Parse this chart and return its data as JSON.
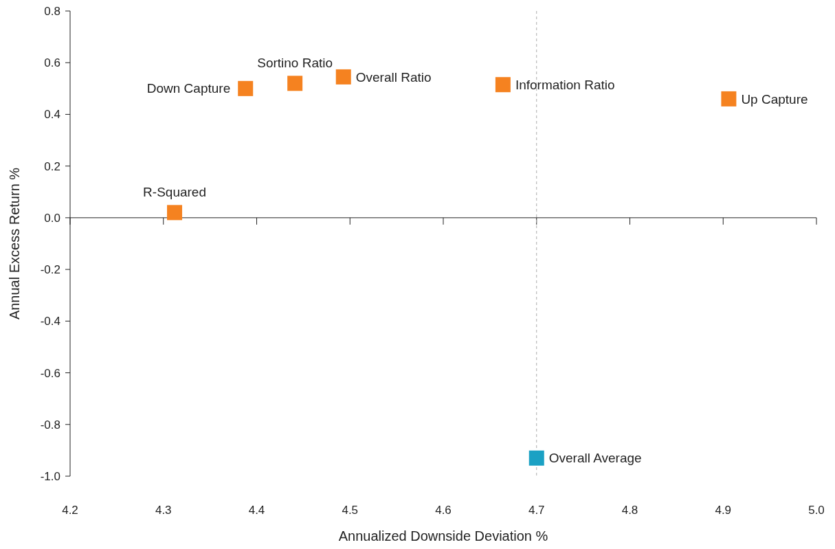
{
  "chart_data": {
    "type": "scatter",
    "xlabel": "Annualized Downside Deviation %",
    "ylabel": "Annual Excess Return %",
    "xlim": [
      4.2,
      5.0
    ],
    "ylim": [
      -1.0,
      0.8
    ],
    "xticks": [
      {
        "value": 4.2,
        "label": "4.2"
      },
      {
        "value": 4.3,
        "label": "4.3"
      },
      {
        "value": 4.4,
        "label": "4.4"
      },
      {
        "value": 4.5,
        "label": "4.5"
      },
      {
        "value": 4.6,
        "label": "4.6"
      },
      {
        "value": 4.7,
        "label": "4.7"
      },
      {
        "value": 4.8,
        "label": "4.8"
      },
      {
        "value": 4.9,
        "label": "4.9"
      },
      {
        "value": 5.0,
        "label": "5.0"
      }
    ],
    "yticks": [
      {
        "value": -1.0,
        "label": "-1.0"
      },
      {
        "value": -0.8,
        "label": "-0.8"
      },
      {
        "value": -0.6,
        "label": "-0.6"
      },
      {
        "value": -0.4,
        "label": "-0.4"
      },
      {
        "value": -0.2,
        "label": "-0.2"
      },
      {
        "value": 0,
        "label": "0.0"
      },
      {
        "value": 0.2,
        "label": "0.2"
      },
      {
        "value": 0.4,
        "label": "0.4"
      },
      {
        "value": 0.6,
        "label": "0.6"
      },
      {
        "value": 0.8,
        "label": "0.8"
      }
    ],
    "series": [
      {
        "color": "#f58220",
        "x": [
          4.312,
          4.388,
          4.441,
          4.493,
          4.664,
          4.906
        ],
        "values": [
          0.02,
          0.5,
          0.52,
          0.545,
          0.515,
          0.46
        ]
      },
      {
        "color": "#1ba1c4",
        "x": [
          4.7
        ],
        "values": [
          -0.93
        ]
      }
    ],
    "annotations": [
      {
        "text": "R-Squared",
        "x": 4.312,
        "y": 0.02
      },
      {
        "text": "Down Capture",
        "x": 4.388,
        "y": 0.5
      },
      {
        "text": "Sortino Ratio",
        "x": 4.441,
        "y": 0.52
      },
      {
        "text": "Overall Ratio",
        "x": 4.493,
        "y": 0.545
      },
      {
        "text": "Information Ratio",
        "x": 4.664,
        "y": 0.515
      },
      {
        "text": "Up Capture",
        "x": 4.906,
        "y": 0.46
      },
      {
        "text": "Overall Average",
        "x": 4.7,
        "y": -0.93
      }
    ],
    "ref_lines": [
      {
        "axis": "x",
        "value": 4.7,
        "color": "#aaaaaa",
        "line_style": "dashed"
      }
    ],
    "marker": "square",
    "grid": false
  }
}
